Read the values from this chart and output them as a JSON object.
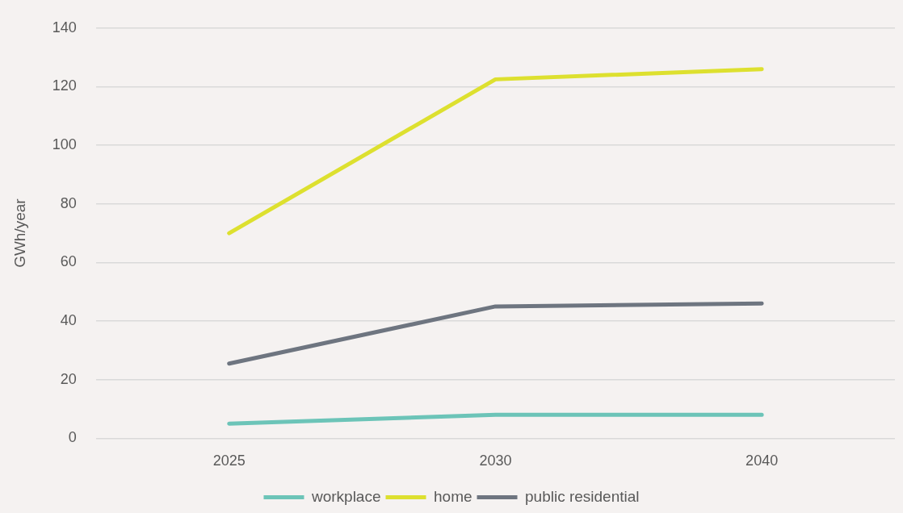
{
  "chart_data": {
    "type": "line",
    "ylabel": "GWh/year",
    "categories": [
      "2025",
      "2030",
      "2040"
    ],
    "series": [
      {
        "name": "workplace",
        "color": "#6cc4b8",
        "values": [
          5,
          8,
          8
        ]
      },
      {
        "name": "home",
        "color": "#dde02f",
        "values": [
          70,
          122.5,
          126
        ]
      },
      {
        "name": "public residential",
        "color": "#6e7580",
        "values": [
          25.5,
          45,
          46
        ]
      }
    ],
    "ylim": [
      0,
      140
    ],
    "yticks": [
      0,
      20,
      40,
      60,
      80,
      100,
      120,
      140
    ],
    "grid": "y",
    "legend": "bottom",
    "marker": "none",
    "line_style": "solid"
  }
}
